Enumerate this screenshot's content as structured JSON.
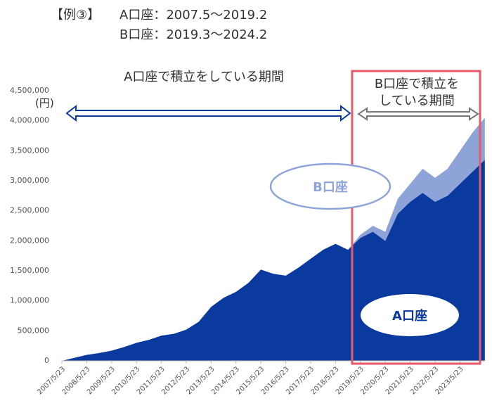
{
  "header": {
    "label": "【例③】",
    "line1": "A口座：2007.5～2019.2",
    "line2": "B口座：2019.3～2024.2"
  },
  "chart_data": {
    "type": "stacked-area",
    "annotations": {
      "a_period": "A口座で積立をしている期間",
      "b_period_1": "B口座で積立を",
      "b_period_2": "している期間"
    },
    "y_unit": "(円)",
    "categories": [
      "2007/5/23",
      null,
      "2008/5/23",
      null,
      "2009/5/23",
      null,
      "2010/5/23",
      null,
      "2011/5/23",
      null,
      "2012/5/23",
      null,
      "2013/5/23",
      null,
      "2014/5/23",
      null,
      "2015/5/23",
      null,
      "2016/5/23",
      null,
      "2017/5/23",
      null,
      "2018/5/23",
      null,
      "2019/5/23",
      null,
      "2020/5/23",
      null,
      "2021/5/23",
      null,
      "2022/5/23",
      null,
      "2023/5/23",
      null,
      null
    ],
    "series": [
      {
        "name": "A口座",
        "color": "#0a3a9e",
        "values": [
          0,
          50000,
          100000,
          130000,
          170000,
          230000,
          300000,
          350000,
          420000,
          450000,
          520000,
          650000,
          900000,
          1050000,
          1150000,
          1300000,
          1520000,
          1450000,
          1420000,
          1550000,
          1700000,
          1850000,
          1950000,
          1850000,
          2050000,
          2150000,
          2000000,
          2450000,
          2650000,
          2800000,
          2650000,
          2750000,
          2950000,
          3150000,
          3350000
        ]
      },
      {
        "name": "B口座",
        "color": "#8ea4d8",
        "values": [
          0,
          0,
          0,
          0,
          0,
          0,
          0,
          0,
          0,
          0,
          0,
          0,
          0,
          0,
          0,
          0,
          0,
          0,
          0,
          0,
          0,
          0,
          0,
          0,
          50000,
          100000,
          150000,
          250000,
          300000,
          400000,
          400000,
          450000,
          550000,
          650000,
          700000
        ]
      }
    ],
    "ylim": [
      0,
      4500000
    ],
    "yticks": [
      0,
      {
        "value": 500000,
        "label": "500,000"
      },
      {
        "value": 1000000,
        "label": "1,000,000"
      },
      {
        "value": 1500000,
        "label": "1,500,000"
      },
      {
        "value": 2000000,
        "label": "2,000,000"
      },
      {
        "value": 2500000,
        "label": "2,500,000"
      },
      {
        "value": 3000000,
        "label": "3,000,000"
      },
      {
        "value": 3500000,
        "label": "3,500,000"
      },
      {
        "value": 4000000,
        "label": "4,000,000"
      },
      {
        "value": 4500000,
        "label": "4,500,000"
      }
    ]
  }
}
